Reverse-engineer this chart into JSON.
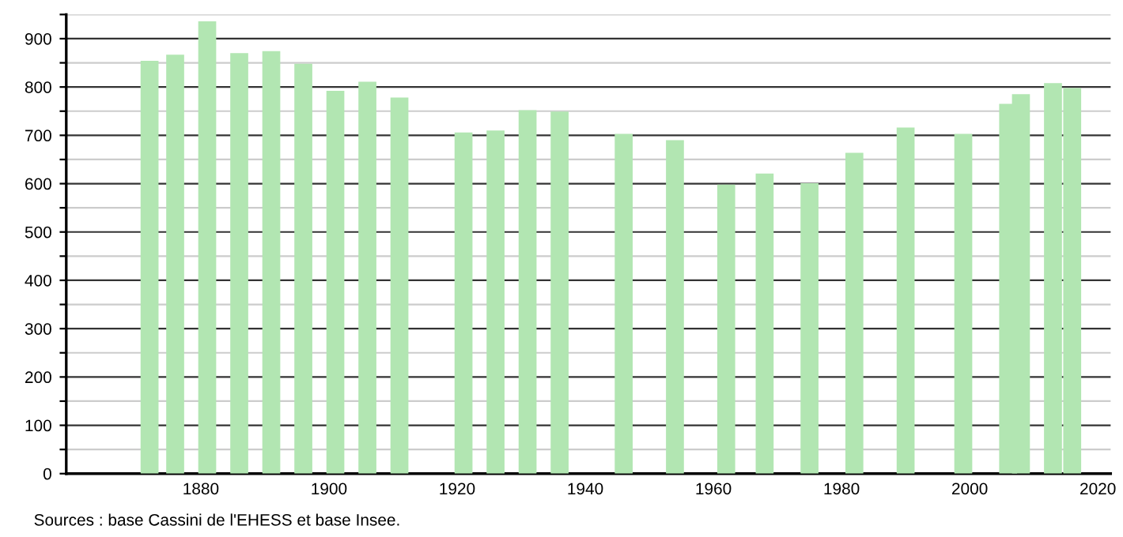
{
  "chart_data": {
    "type": "bar",
    "x": [
      1872,
      1876,
      1881,
      1886,
      1891,
      1896,
      1901,
      1906,
      1911,
      1921,
      1926,
      1931,
      1936,
      1946,
      1954,
      1962,
      1968,
      1975,
      1982,
      1990,
      1999,
      2006,
      2008,
      2013,
      2016
    ],
    "values": [
      854,
      867,
      936,
      870,
      874,
      848,
      792,
      811,
      778,
      706,
      710,
      752,
      749,
      703,
      690,
      598,
      621,
      601,
      664,
      716,
      703,
      765,
      785,
      808,
      798
    ],
    "color": "#b2e6b2",
    "xlim": [
      1859,
      2022
    ],
    "xticks": [
      1880,
      1900,
      1920,
      1940,
      1960,
      1980,
      2000,
      2020
    ],
    "ylim": [
      0,
      950
    ],
    "yticks": [
      0,
      {
        "value": 50,
        "label": null
      },
      100,
      {
        "value": 150,
        "label": null
      },
      200,
      {
        "value": 250,
        "label": null
      },
      300,
      {
        "value": 350,
        "label": null
      },
      400,
      {
        "value": 450,
        "label": null
      },
      500,
      {
        "value": 550,
        "label": null
      },
      600,
      {
        "value": 650,
        "label": null
      },
      700,
      {
        "value": 750,
        "label": null
      },
      800,
      {
        "value": 850,
        "label": null
      },
      900,
      {
        "value": 950,
        "label": null
      }
    ],
    "grid": "y",
    "annotations": [
      "Sources : base Cassini de l'EHESS et base Insee."
    ]
  }
}
